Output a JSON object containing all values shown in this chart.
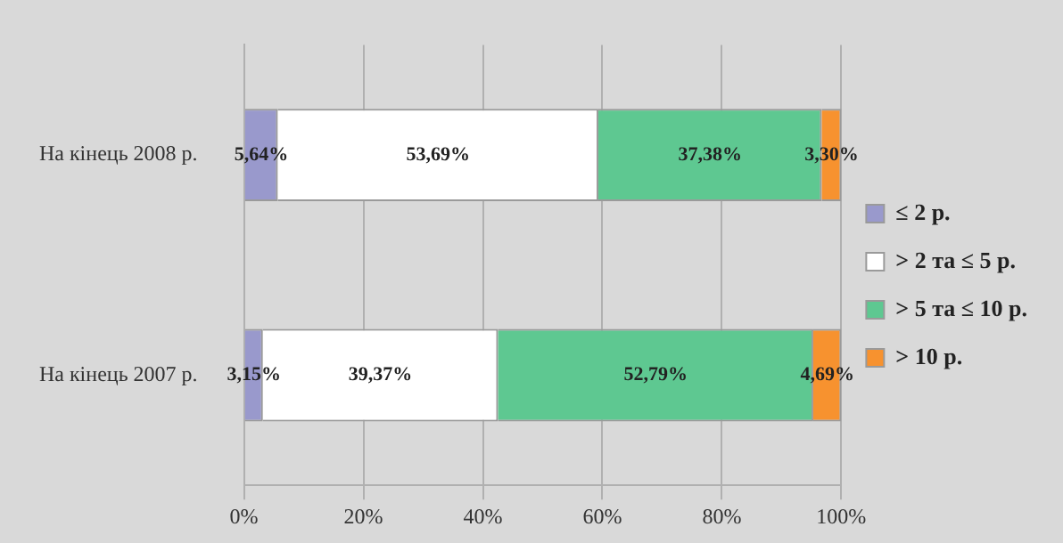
{
  "chart_data": {
    "type": "bar",
    "orientation": "horizontal",
    "stacked": true,
    "categories": [
      "На кінець 2008 р.",
      "На кінець 2007 р."
    ],
    "series": [
      {
        "name": "≤ 2 р.",
        "color": "#9999cc",
        "values": [
          5.64,
          3.15
        ],
        "value_labels": [
          "5,64%",
          "3,15%"
        ]
      },
      {
        "name": "> 2 та ≤ 5 р.",
        "color": "#ffffff",
        "values": [
          53.69,
          39.37
        ],
        "value_labels": [
          "53,69%",
          "39,37%"
        ]
      },
      {
        "name": "> 5 та ≤ 10 р.",
        "color": "#5ec891",
        "values": [
          37.38,
          52.79
        ],
        "value_labels": [
          "37,38%",
          "52,79%"
        ]
      },
      {
        "name": "> 10 р.",
        "color": "#f7922f",
        "values": [
          3.3,
          4.69
        ],
        "value_labels": [
          "3,30%",
          "4,69%"
        ]
      }
    ],
    "xlim": [
      0,
      100
    ],
    "xticks": [
      {
        "value": 0,
        "label": "0%"
      },
      {
        "value": 20,
        "label": "20%"
      },
      {
        "value": 40,
        "label": "40%"
      },
      {
        "value": 60,
        "label": "60%"
      },
      {
        "value": 80,
        "label": "80%"
      },
      {
        "value": 100,
        "label": "100%"
      }
    ],
    "grid": "x",
    "legend": "right"
  }
}
